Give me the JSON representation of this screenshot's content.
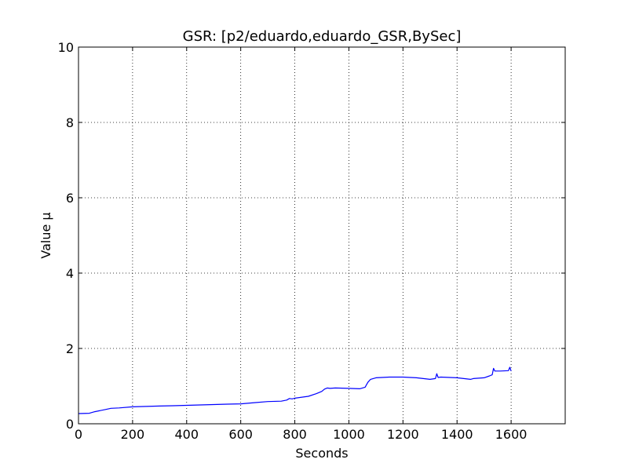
{
  "chart_data": {
    "type": "line",
    "title": "GSR: [p2/eduardo,eduardo_GSR,BySec]",
    "xlabel": "Seconds",
    "ylabel": "Value µ",
    "xlim": [
      0,
      1800
    ],
    "ylim": [
      0,
      10
    ],
    "xticks": [
      0,
      200,
      400,
      600,
      800,
      1000,
      1200,
      1400,
      1600
    ],
    "yticks": [
      0,
      2,
      4,
      6,
      8,
      10
    ],
    "grid": true,
    "colors": {
      "line": "#0000ff",
      "grid": "#000000",
      "axes": "#000000"
    },
    "series": [
      {
        "x": [
          0,
          40,
          60,
          100,
          120,
          150,
          200,
          250,
          300,
          350,
          400,
          450,
          500,
          550,
          600,
          650,
          700,
          750,
          770,
          780,
          790,
          800,
          850,
          880,
          900,
          910,
          920,
          930,
          950,
          1000,
          1040,
          1060,
          1070,
          1080,
          1090,
          1100,
          1150,
          1200,
          1250,
          1300,
          1320,
          1325,
          1330,
          1340,
          1400,
          1450,
          1460,
          1500,
          1520,
          1530,
          1535,
          1540,
          1560,
          1590,
          1595,
          1600
        ],
        "y": [
          0.27,
          0.28,
          0.32,
          0.38,
          0.41,
          0.42,
          0.45,
          0.46,
          0.47,
          0.48,
          0.49,
          0.5,
          0.51,
          0.52,
          0.53,
          0.56,
          0.59,
          0.6,
          0.63,
          0.67,
          0.66,
          0.68,
          0.73,
          0.8,
          0.86,
          0.92,
          0.95,
          0.94,
          0.95,
          0.94,
          0.93,
          0.97,
          1.1,
          1.18,
          1.2,
          1.22,
          1.24,
          1.24,
          1.22,
          1.18,
          1.2,
          1.33,
          1.23,
          1.24,
          1.22,
          1.18,
          1.2,
          1.22,
          1.27,
          1.3,
          1.47,
          1.4,
          1.4,
          1.41,
          1.5,
          1.4
        ]
      }
    ]
  }
}
